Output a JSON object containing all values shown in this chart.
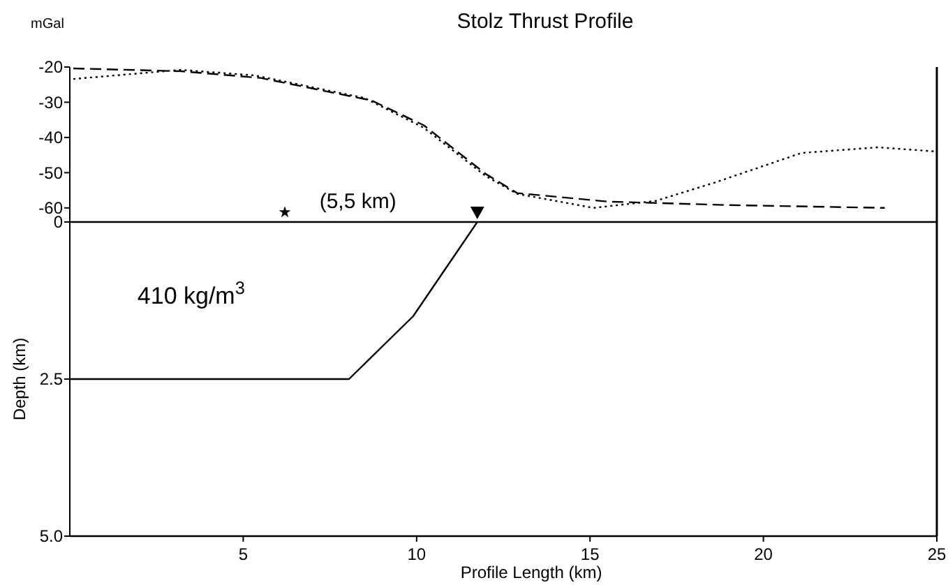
{
  "chart_data": [
    {
      "type": "line",
      "title": "Stolz Thrust Profile",
      "ylabel": "mGal",
      "xlim": [
        0,
        25
      ],
      "ylim": [
        -64,
        -20
      ],
      "yticks": [
        -20,
        -30,
        -40,
        -50,
        -60
      ],
      "tick_labels": "y",
      "grid": false,
      "marker": "none",
      "series": [
        {
          "color": "#000000",
          "line_style": "dotted",
          "x": [
            0.1,
            3.2,
            5.35,
            8.5,
            10.2,
            12,
            12.9,
            15.1,
            16.9,
            18.6,
            21.1,
            23.3,
            25
          ],
          "values": [
            -23.4,
            -20.8,
            -22.4,
            -28.8,
            -37.2,
            -51,
            -56,
            -60,
            -58,
            -52.8,
            -44.4,
            -42.8,
            -44
          ]
        },
        {
          "color": "#000000",
          "line_style": "dashed",
          "x": [
            0.1,
            3.2,
            5.5,
            8.7,
            10.2,
            12,
            12.9,
            15.5,
            19,
            23.5
          ],
          "values": [
            -20.4,
            -21.2,
            -23.1,
            -29.5,
            -36.5,
            -50.4,
            -55.8,
            -58.2,
            -59.2,
            -60
          ]
        }
      ]
    },
    {
      "type": "line",
      "xlabel": "Profile Length (km)",
      "ylabel": "Depth (km)",
      "xlim": [
        0,
        25
      ],
      "ylim": [
        5,
        0
      ],
      "xticks": [
        5,
        10,
        15,
        20,
        25
      ],
      "yticks": [
        0,
        2.5,
        {
          "value": 5,
          "label": "5.0"
        }
      ],
      "grid": false,
      "marker": "none",
      "annotations": [
        "(5,5 km)",
        "410 kg/m$^{3}$"
      ],
      "series": [
        {
          "color": "#000000",
          "line_style": "solid",
          "x": [
            0,
            8.05,
            9.9,
            11.75
          ],
          "values": [
            2.5,
            2.5,
            1.5,
            0
          ]
        }
      ]
    }
  ]
}
